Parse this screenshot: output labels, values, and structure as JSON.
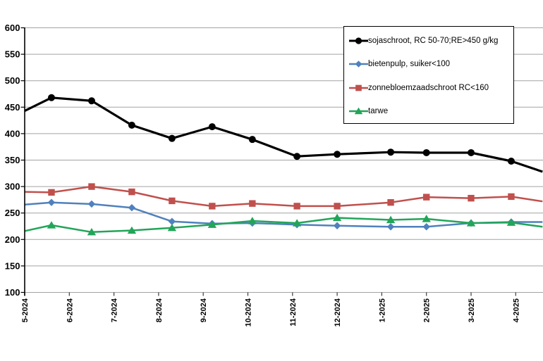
{
  "chart_data": {
    "type": "line",
    "title": "",
    "xlabel": "",
    "ylabel": "",
    "ylim": [
      100,
      600
    ],
    "y_tick_step": 50,
    "y_tick_labels": [
      "100",
      "150",
      "200",
      "250",
      "300",
      "350",
      "400",
      "450",
      "500",
      "550",
      "600"
    ],
    "x_tick_labels": [
      "5-2024",
      "6-2024",
      "7-2024",
      "8-2024",
      "9-2024",
      "10-2024",
      "11-2024",
      "12-2024",
      "1-2025",
      "2-2025",
      "3-2025",
      "4-2025"
    ],
    "grid": true,
    "legend_position": "top-right",
    "marker_x_months": [
      0.6,
      1.5,
      2.4,
      3.3,
      4.2,
      5.1,
      6.1,
      7.0,
      8.2,
      9.0,
      10.0,
      10.9
    ],
    "visible_x_month_range": [
      0,
      11.6
    ],
    "series": [
      {
        "name": "sojaschroot, RC 50-70;RE>450 g/kg",
        "color": "#000000",
        "marker": "circle",
        "left_edge_value": 443,
        "values": [
          468,
          462,
          416,
          391,
          413,
          389,
          357,
          361,
          365,
          364,
          364,
          348
        ],
        "right_edge_value": 328
      },
      {
        "name": "bietenpulp, suiker<100",
        "color": "#4f81bd",
        "marker": "diamond",
        "left_edge_value": 266,
        "values": [
          270,
          267,
          260,
          234,
          230,
          231,
          228,
          226,
          224,
          224,
          231,
          233
        ],
        "right_edge_value": 233
      },
      {
        "name": "zonnebloemzaadschroot RC<160",
        "color": "#c0504d",
        "marker": "square",
        "left_edge_value": 290,
        "values": [
          289,
          300,
          290,
          273,
          263,
          268,
          263,
          263,
          270,
          280,
          278,
          281
        ],
        "right_edge_value": 272
      },
      {
        "name": "tarwe",
        "color": "#22a559",
        "marker": "triangle",
        "left_edge_value": 216,
        "values": [
          227,
          214,
          217,
          222,
          228,
          235,
          231,
          241,
          237,
          239,
          231,
          232
        ],
        "right_edge_value": 224
      }
    ]
  }
}
